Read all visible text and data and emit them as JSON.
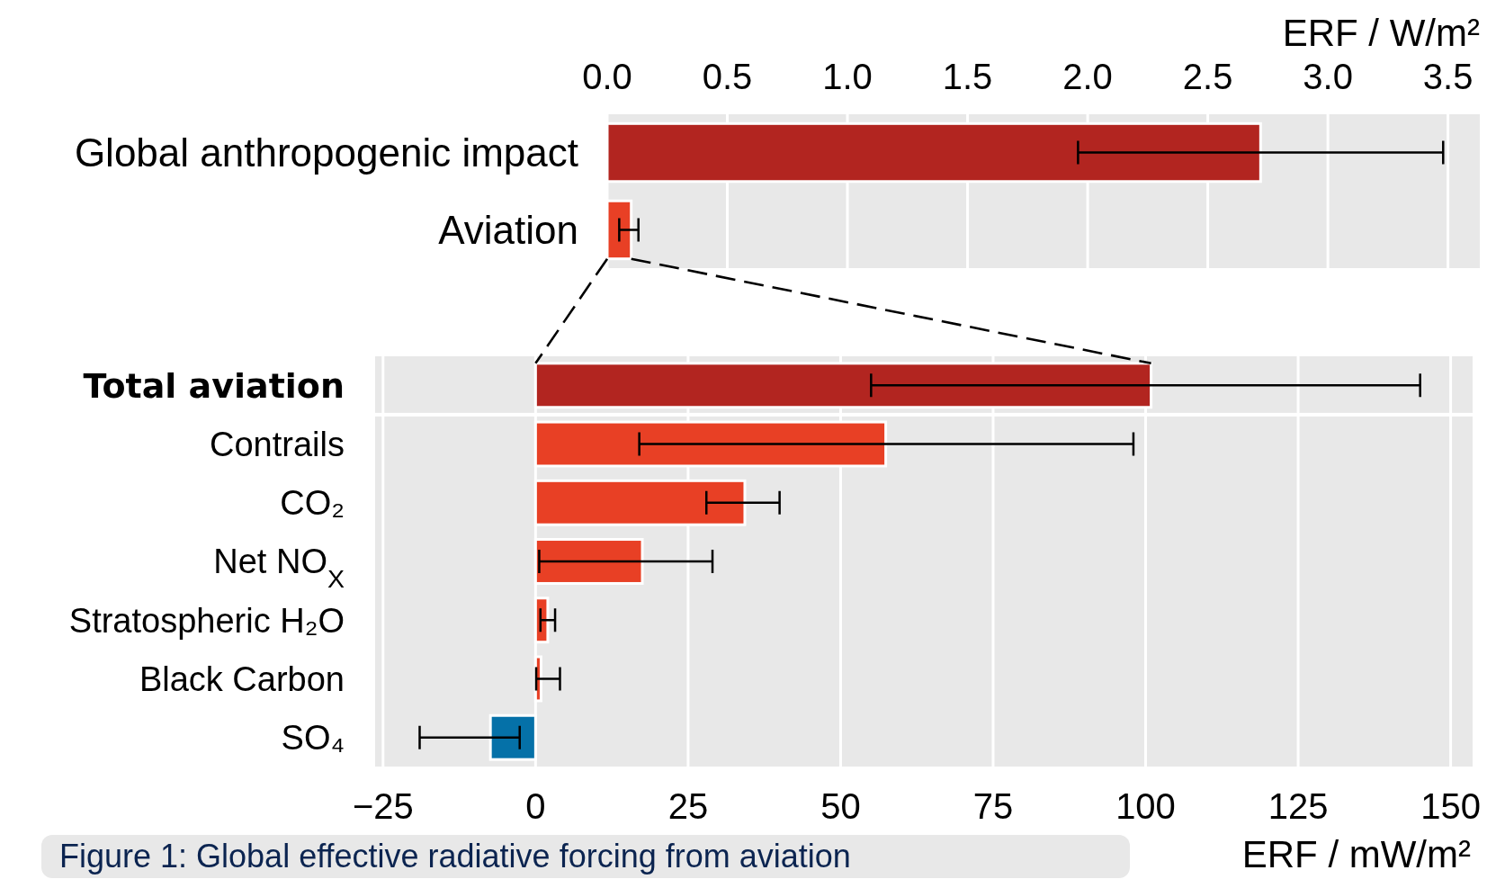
{
  "chart_data": [
    {
      "type": "bar",
      "orientation": "horizontal",
      "xlabel": "ERF / W/m²",
      "categories": [
        "Global anthropogenic impact",
        "Aviation"
      ],
      "values": [
        2.72,
        0.1
      ],
      "colors": [
        "#b22520",
        "#e84025"
      ],
      "errors": [
        [
          1.96,
          3.48
        ],
        [
          0.05,
          0.13
        ]
      ],
      "xlim": [
        0,
        3.64
      ],
      "xticks": [
        {
          "value": 0,
          "label": "0.0"
        },
        0.5,
        {
          "value": 1,
          "label": "1.0"
        },
        1.5,
        {
          "value": 2,
          "label": "2.0"
        },
        2.5,
        {
          "value": 3,
          "label": "3.0"
        },
        3.5
      ],
      "grid": "x"
    },
    {
      "type": "bar",
      "orientation": "horizontal",
      "xlabel": "ERF / mW/m²",
      "categories": [
        "Total aviation",
        "Contrails",
        "CO₂",
        "Net NO$_{X}$",
        "Stratospheric H₂O",
        "Black Carbon",
        "SO₄"
      ],
      "values": [
        100.9,
        57.4,
        34.3,
        17.5,
        2.0,
        0.9,
        -7.4
      ],
      "colors": [
        "#b22520",
        "#e84025",
        "#e84025",
        "#e84025",
        "#e84025",
        "#e84025",
        "#0571a8"
      ],
      "errors": [
        [
          55,
          145
        ],
        [
          17,
          98
        ],
        [
          28,
          40
        ],
        [
          0.6,
          29
        ],
        [
          0.8,
          3.2
        ],
        [
          0.1,
          4
        ],
        [
          -19,
          -2.6
        ]
      ],
      "xlim": [
        -26.3,
        153.6
      ],
      "xticks": [
        {
          "value": -25,
          "label": "−25"
        },
        0,
        25,
        50,
        75,
        100,
        125,
        150
      ],
      "grid": "x",
      "annotations": [
        "Figure 1: Global effective radiative forcing from aviation"
      ]
    }
  ]
}
